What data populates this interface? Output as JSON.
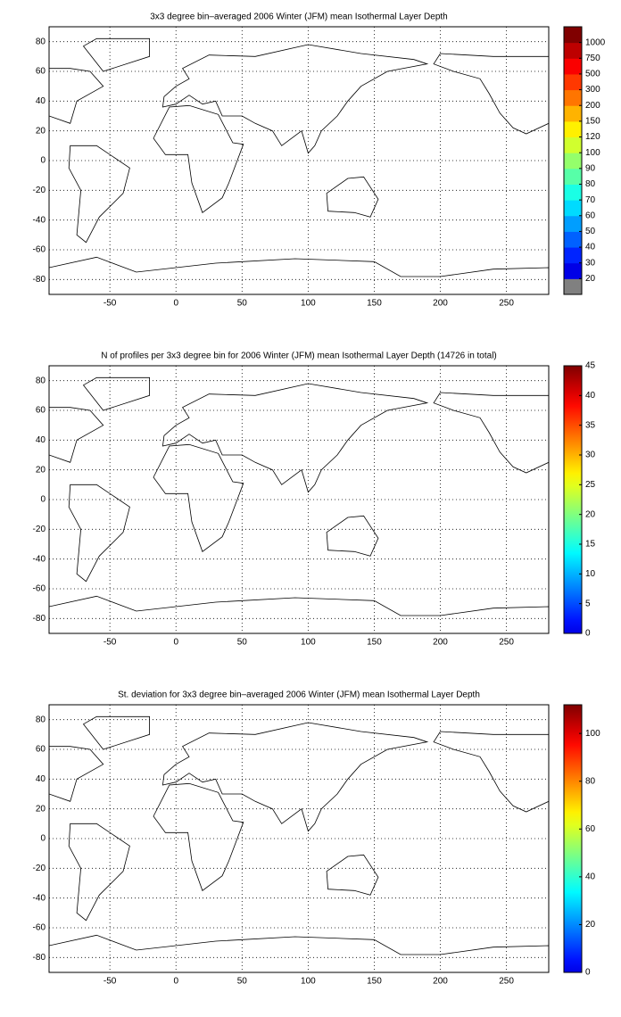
{
  "chart_data": [
    {
      "type": "heatmap",
      "title": "3x3 degree bin–averaged 2006 Winter (JFM) mean Isothermal Layer Depth",
      "xlim": [
        -96,
        282
      ],
      "ylim": [
        -90,
        90
      ],
      "xticks": [
        -50,
        0,
        50,
        100,
        150,
        200,
        250
      ],
      "yticks": [
        -80,
        -60,
        -40,
        -20,
        0,
        20,
        40,
        60,
        80
      ],
      "grid": true,
      "colorbar": "discrete",
      "under_color": "#808080",
      "cticks": [
        20,
        30,
        40,
        50,
        60,
        70,
        80,
        90,
        100,
        120,
        150,
        200,
        300,
        500,
        750,
        1000
      ]
    },
    {
      "type": "heatmap",
      "title": "N of profiles per 3x3 degree bin for 2006 Winter (JFM) mean Isothermal Layer Depth  (14726 in total)",
      "xlim": [
        -96,
        282
      ],
      "ylim": [
        -90,
        90
      ],
      "xticks": [
        -50,
        0,
        50,
        100,
        150,
        200,
        250
      ],
      "yticks": [
        -80,
        -60,
        -40,
        -20,
        0,
        20,
        40,
        60,
        80
      ],
      "grid": true,
      "colorbar": "continuous",
      "clim": [
        0,
        45
      ],
      "cticks": [
        0,
        5,
        10,
        15,
        20,
        25,
        30,
        35,
        40,
        45
      ]
    },
    {
      "type": "heatmap",
      "title": "St. deviation for 3x3 degree bin–averaged 2006 Winter (JFM) mean Isothermal Layer Depth",
      "xlim": [
        -96,
        282
      ],
      "ylim": [
        -90,
        90
      ],
      "xticks": [
        -50,
        0,
        50,
        100,
        150,
        200,
        250
      ],
      "yticks": [
        -80,
        -60,
        -40,
        -20,
        0,
        20,
        40,
        60,
        80
      ],
      "grid": true,
      "colorbar": "continuous",
      "clim": [
        0,
        112
      ],
      "cticks": [
        0,
        20,
        40,
        60,
        80,
        100
      ]
    }
  ]
}
